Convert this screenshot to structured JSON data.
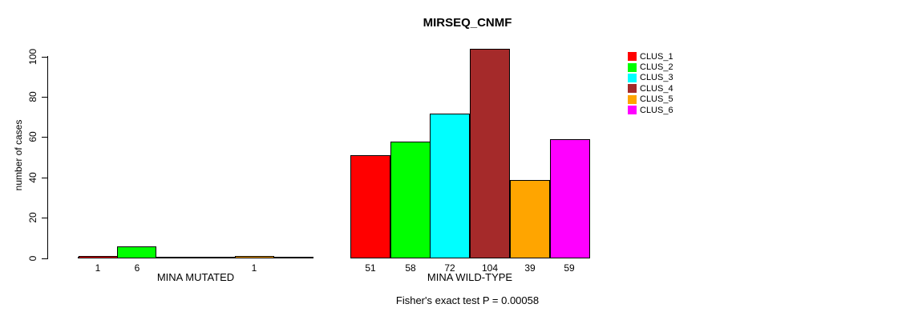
{
  "title": "MIRSEQ_CNMF",
  "chart_data": {
    "type": "bar",
    "title": "MIRSEQ_CNMF",
    "xlabel": "",
    "ylabel": "number of cases",
    "ylim": [
      0,
      100
    ],
    "yticks": [
      0,
      20,
      40,
      60,
      80,
      100
    ],
    "grid": false,
    "legend_position": "top-right-outside",
    "series": [
      {
        "name": "CLUS_1",
        "color": "#FF0000"
      },
      {
        "name": "CLUS_2",
        "color": "#00FF00"
      },
      {
        "name": "CLUS_3",
        "color": "#00FFFF"
      },
      {
        "name": "CLUS_4",
        "color": "#A52A2A"
      },
      {
        "name": "CLUS_5",
        "color": "#FFA500"
      },
      {
        "name": "CLUS_6",
        "color": "#FF00FF"
      }
    ],
    "groups": [
      {
        "label": "MINA MUTATED",
        "values": [
          1,
          6,
          0,
          0,
          1,
          0
        ],
        "bar_labels": [
          "1",
          "6",
          "",
          "",
          "1",
          ""
        ]
      },
      {
        "label": "MINA WILD-TYPE",
        "values": [
          51,
          58,
          72,
          104,
          39,
          59
        ],
        "bar_labels": [
          "51",
          "58",
          "72",
          "104",
          "39",
          "59"
        ]
      }
    ],
    "annotation": "Fisher's exact test P = 0.00058"
  }
}
